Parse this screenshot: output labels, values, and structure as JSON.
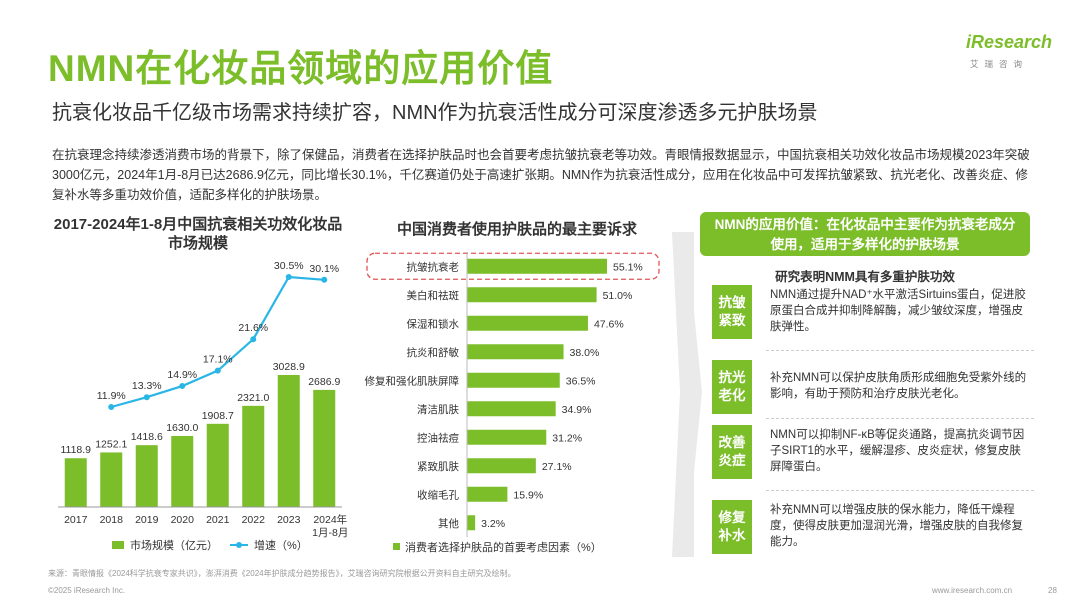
{
  "header": {
    "title": "NMN在化妆品领域的应用价值",
    "subtitle": "抗衰化妆品千亿级市场需求持续扩容，NMN作为抗衰活性成分可深度渗透多元护肤场景",
    "intro": "在抗衰理念持续渗透消费市场的背景下，除了保健品，消费者在选择护肤品时也会首要考虑抗皱抗衰老等功效。青眼情报数据显示，中国抗衰相关功效化妆品市场规模2023年突破3000亿元，2024年1月-8月已达2686.9亿元，同比增长30.1%，千亿赛道仍处于高速扩张期。NMN作为抗衰活性成分，应用在化妆品中可发挥抗皱紧致、抗光老化、改善炎症、修复补水等多重功效价值，适配多样化的护肤场景。"
  },
  "logo": {
    "word": "iResearch",
    "sub": "艾瑞咨询"
  },
  "chart_data": [
    {
      "type": "bar",
      "title": "2017-2024年1-8月中国抗衰相关功效化妆品市场规模",
      "categories": [
        "2017",
        "2018",
        "2019",
        "2020",
        "2021",
        "2022",
        "2023",
        "2024年1月-8月"
      ],
      "series": [
        {
          "name": "市场规模（亿元）",
          "type": "bar",
          "values": [
            1118.9,
            1252.1,
            1418.6,
            1630.0,
            1908.7,
            2321.0,
            3028.9,
            2686.9
          ],
          "labels": [
            "1118.9",
            "1252.1",
            "1418.6",
            "1630.0",
            "1908.7",
            "2321.0",
            "3028.9",
            "2686.9"
          ]
        },
        {
          "name": "增速（%）",
          "type": "line",
          "values": [
            null,
            11.9,
            13.3,
            14.9,
            17.1,
            21.6,
            30.5,
            30.1
          ],
          "labels": [
            "",
            "11.9%",
            "13.3%",
            "14.9%",
            "17.1%",
            "21.6%",
            "30.5%",
            "30.1%"
          ]
        }
      ],
      "legend": "bottom"
    },
    {
      "type": "bar",
      "orientation": "horizontal",
      "title": "中国消费者使用护肤品的最主要诉求",
      "categories": [
        "抗皱抗衰老",
        "美白和祛斑",
        "保湿和锁水",
        "抗炎和舒敏",
        "修复和强化肌肤屏障",
        "清洁肌肤",
        "控油祛痘",
        "紧致肌肤",
        "收缩毛孔",
        "其他"
      ],
      "values": [
        55.1,
        51.0,
        47.6,
        38.0,
        36.5,
        34.9,
        31.2,
        27.1,
        15.9,
        3.2
      ],
      "labels": [
        "55.1%",
        "51.0%",
        "47.6%",
        "38.0%",
        "36.5%",
        "34.9%",
        "31.2%",
        "27.1%",
        "15.9%",
        "3.2%"
      ],
      "highlight": "抗皱抗衰老",
      "legend_text": "消费者选择护肤品的首要考虑因素（%）"
    }
  ],
  "panel": {
    "header": "NMN的应用价值：在化妆品中主要作为抗衰老成分使用，适用于多样化的护肤场景",
    "subheader": "研究表明NMM具有多重护肤功效",
    "rows": [
      {
        "label": "抗皱紧致",
        "text": "NMN通过提升NAD⁺水平激活Sirtuins蛋白，促进胶原蛋白合成并抑制降解酶，减少皱纹深度，增强皮肤弹性。"
      },
      {
        "label": "抗光老化",
        "text": "补充NMN可以保护皮肤角质形成细胞免受紫外线的影响，有助于预防和治疗皮肤光老化。"
      },
      {
        "label": "改善炎症",
        "text": "NMN可以抑制NF-κB等促炎通路，提高抗炎调节因子SIRT1的水平，缓解湿疹、皮炎症状，修复皮肤屏障蛋白。"
      },
      {
        "label": "修复补水",
        "text": "补充NMN可以增强皮肤的保水能力，降低干燥程度，使得皮肤更加湿润光滑，增强皮肤的自我修复能力。"
      }
    ]
  },
  "footer": {
    "source": "来源：青眼情报《2024科学抗衰专家共识》，澎湃消费《2024年护肤成分趋势报告》，艾瑞咨询研究院根据公开资料自主研究及绘制。",
    "copyright": "©2025 iResearch Inc.",
    "site": "www.iresearch.com.cn",
    "page": "28"
  },
  "colors": {
    "accent": "#7cbd2a",
    "line": "#29b6e6",
    "highlight": "#e05555"
  }
}
